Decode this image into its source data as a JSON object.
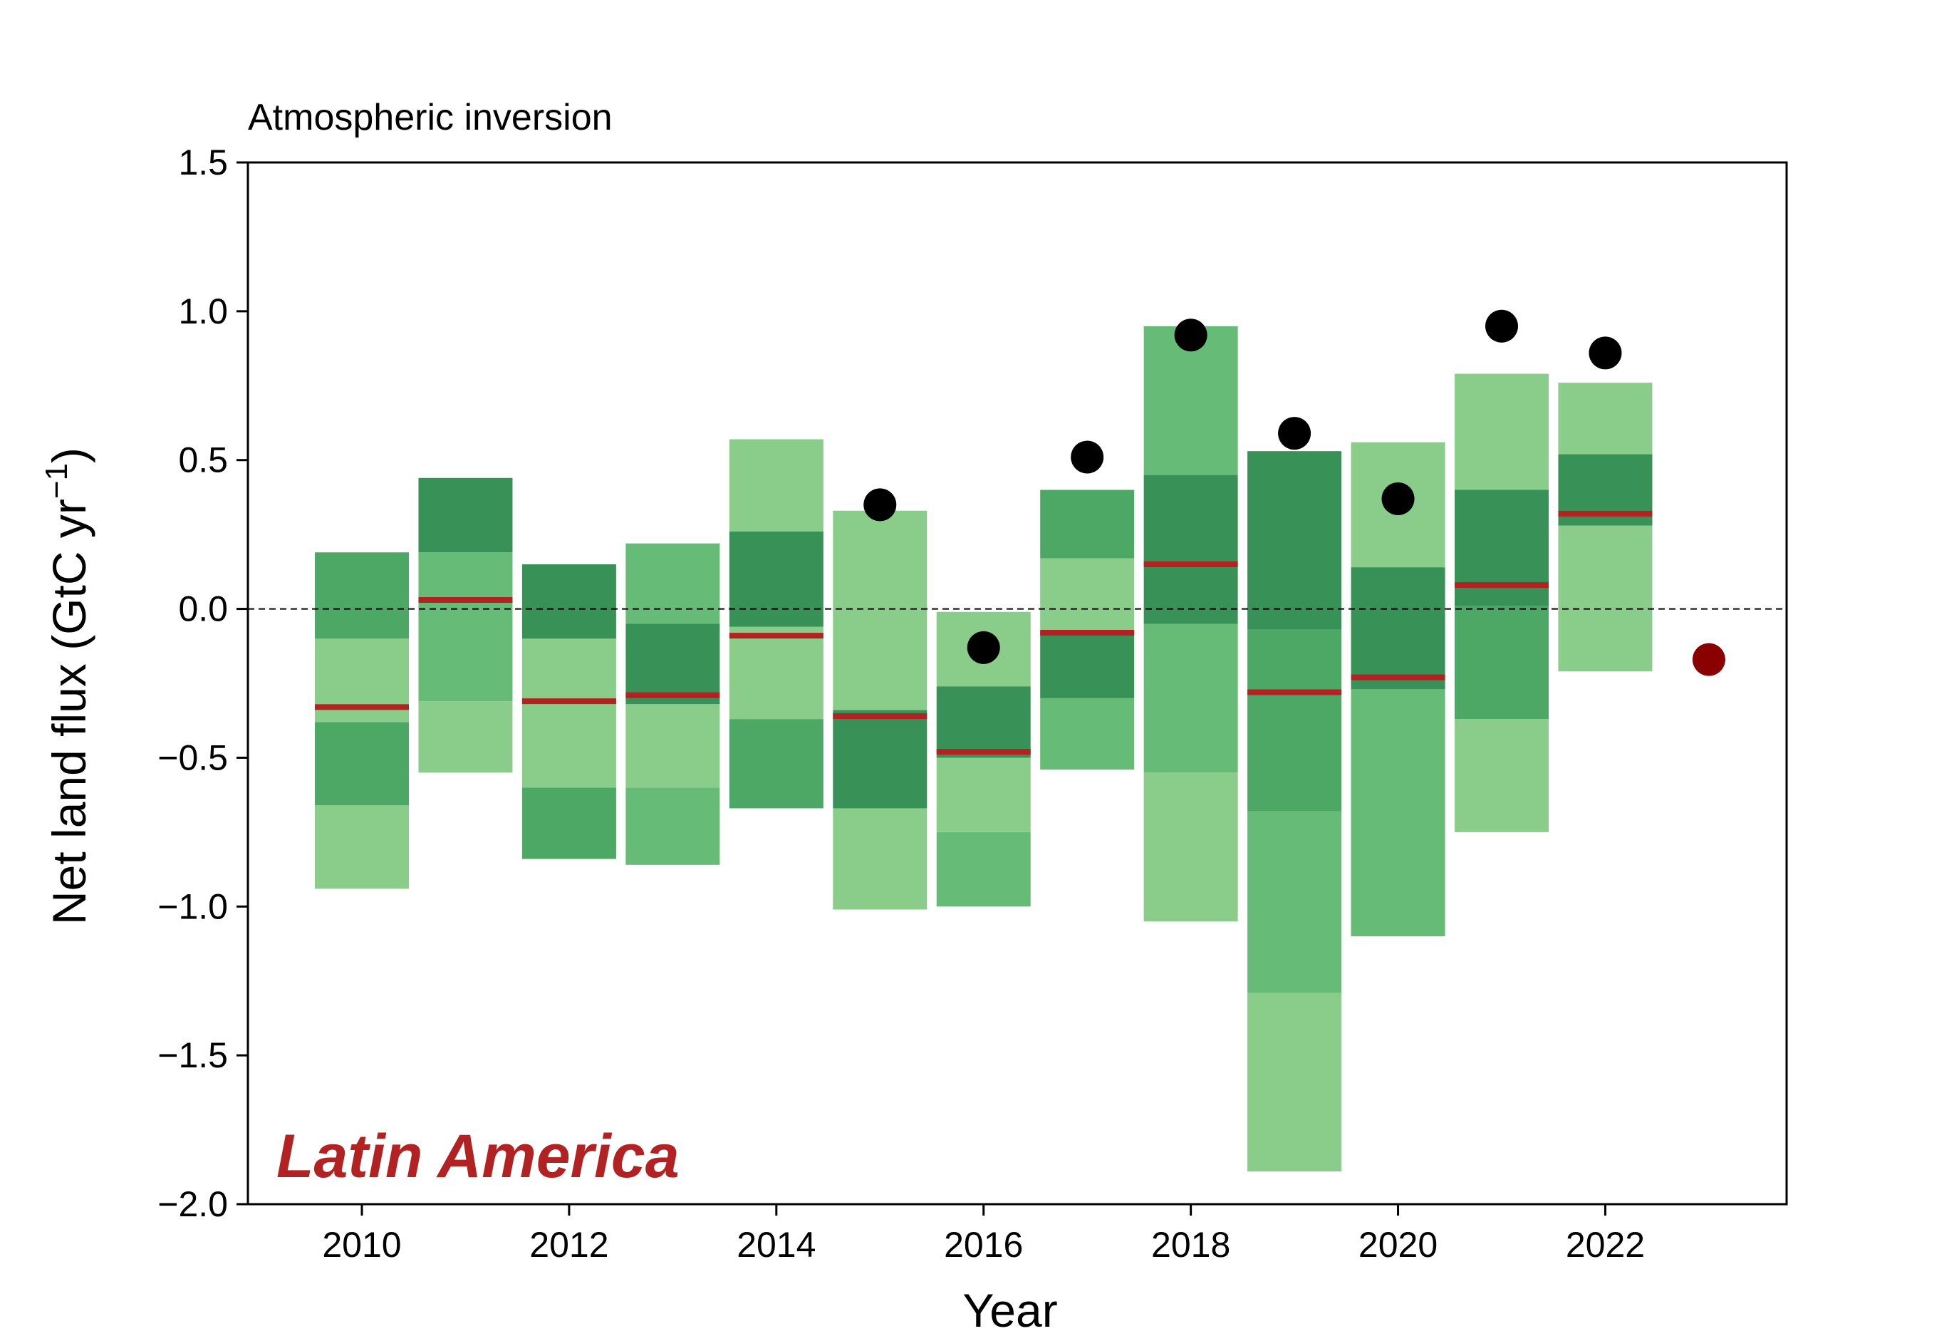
{
  "chart_data": {
    "type": "bar",
    "title": "Atmospheric inversion",
    "annotation": "Latin America",
    "xlabel": "Year",
    "ylabel": "Net land flux (GtC yr",
    "ylabel_sup": "−1",
    "ylabel_close": ")",
    "xlim": [
      2008.9,
      2023.75
    ],
    "ylim": [
      -2.0,
      1.5
    ],
    "xticks": [
      2010,
      2012,
      2014,
      2016,
      2018,
      2020,
      2022
    ],
    "xtick_labels": [
      "2010",
      "2012",
      "2014",
      "2016",
      "2018",
      "2020",
      "2022"
    ],
    "yticks": [
      -2.0,
      -1.5,
      -1.0,
      -0.5,
      0.0,
      0.5,
      1.0,
      1.5
    ],
    "ytick_labels": [
      "−2.0",
      "−1.5",
      "−1.0",
      "−0.5",
      "0.0",
      "0.5",
      "1.0",
      "1.5"
    ],
    "zero_line": 0.0,
    "grid": false,
    "colors": {
      "band_1": "#8acd8a",
      "band_2": "#66bb77",
      "band_3": "#4ea865",
      "band_4": "#389258",
      "median": "#b22222",
      "point": "#000000",
      "final_point": "#8b0000",
      "annotation": "#b22222"
    },
    "years": [
      {
        "year": 2010,
        "segments": [
          [
            -0.94,
            -0.66,
            1
          ],
          [
            -0.66,
            -0.38,
            3
          ],
          [
            -0.38,
            -0.1,
            1
          ],
          [
            -0.1,
            0.19,
            3
          ]
        ],
        "median": -0.33,
        "point": null
      },
      {
        "year": 2011,
        "segments": [
          [
            -0.55,
            -0.31,
            1
          ],
          [
            -0.31,
            0.19,
            2
          ],
          [
            0.19,
            0.44,
            4
          ]
        ],
        "median": 0.03,
        "point": null
      },
      {
        "year": 2012,
        "segments": [
          [
            -0.84,
            -0.6,
            3
          ],
          [
            -0.6,
            -0.1,
            1
          ],
          [
            -0.1,
            0.15,
            4
          ]
        ],
        "median": -0.31,
        "point": null
      },
      {
        "year": 2013,
        "segments": [
          [
            -0.86,
            -0.6,
            2
          ],
          [
            -0.6,
            -0.32,
            1
          ],
          [
            -0.32,
            -0.05,
            4
          ],
          [
            -0.05,
            0.22,
            2
          ]
        ],
        "median": -0.29,
        "point": null
      },
      {
        "year": 2014,
        "segments": [
          [
            -0.67,
            -0.37,
            3
          ],
          [
            -0.37,
            -0.06,
            1
          ],
          [
            -0.06,
            0.26,
            4
          ],
          [
            0.26,
            0.57,
            1
          ]
        ],
        "median": -0.09,
        "point": null
      },
      {
        "year": 2015,
        "segments": [
          [
            -1.01,
            -0.67,
            1
          ],
          [
            -0.67,
            -0.34,
            4
          ],
          [
            -0.34,
            0.33,
            1
          ]
        ],
        "median": -0.36,
        "point": 0.35
      },
      {
        "year": 2016,
        "segments": [
          [
            -1.0,
            -0.75,
            2
          ],
          [
            -0.75,
            -0.5,
            1
          ],
          [
            -0.5,
            -0.26,
            4
          ],
          [
            -0.26,
            -0.01,
            1
          ]
        ],
        "median": -0.48,
        "point": -0.13
      },
      {
        "year": 2017,
        "segments": [
          [
            -0.54,
            -0.3,
            2
          ],
          [
            -0.3,
            -0.08,
            4
          ],
          [
            -0.08,
            0.17,
            1
          ],
          [
            0.17,
            0.4,
            3
          ]
        ],
        "median": -0.08,
        "point": 0.51
      },
      {
        "year": 2018,
        "segments": [
          [
            -1.05,
            -0.55,
            1
          ],
          [
            -0.55,
            -0.05,
            2
          ],
          [
            -0.05,
            0.45,
            4
          ],
          [
            0.45,
            0.95,
            2
          ]
        ],
        "median": 0.15,
        "point": 0.92
      },
      {
        "year": 2019,
        "segments": [
          [
            -1.89,
            -1.29,
            1
          ],
          [
            -1.29,
            -0.68,
            2
          ],
          [
            -0.68,
            -0.07,
            3
          ],
          [
            -0.07,
            0.53,
            4
          ]
        ],
        "median": -0.28,
        "point": 0.59
      },
      {
        "year": 2020,
        "segments": [
          [
            -1.1,
            -0.27,
            2
          ],
          [
            -0.27,
            0.14,
            4
          ],
          [
            0.14,
            0.56,
            1
          ]
        ],
        "median": -0.23,
        "point": 0.37
      },
      {
        "year": 2021,
        "segments": [
          [
            -0.75,
            -0.37,
            1
          ],
          [
            -0.37,
            0.01,
            3
          ],
          [
            0.01,
            0.4,
            4
          ],
          [
            0.4,
            0.79,
            1
          ]
        ],
        "median": 0.08,
        "point": 0.95
      },
      {
        "year": 2022,
        "segments": [
          [
            -0.21,
            0.28,
            1
          ],
          [
            0.28,
            0.52,
            4
          ],
          [
            0.52,
            0.76,
            1
          ]
        ],
        "median": 0.32,
        "point": 0.86
      }
    ],
    "final_point": {
      "year": 2023,
      "value": -0.17
    }
  }
}
